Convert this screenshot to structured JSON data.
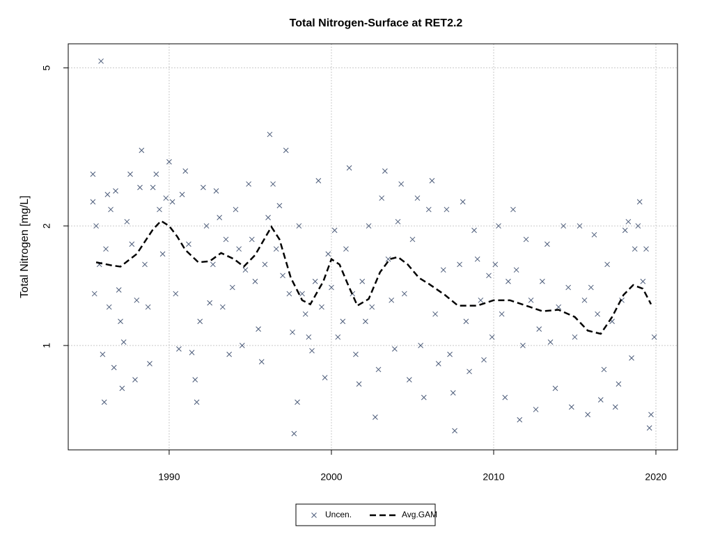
{
  "chart_data": {
    "type": "scatter",
    "title": "Total Nitrogen-Surface at RET2.2",
    "y_label": "Total Nitrogen [mg/L]",
    "xlim": [
      1983.78,
      2021.33
    ],
    "xticks": [
      1990,
      2000,
      2010,
      2020
    ],
    "ylim": [
      0.546,
      5.75
    ],
    "yticks": [
      1,
      2,
      5
    ],
    "ylog": true,
    "grid": true,
    "legend": "bottom",
    "series": [
      {
        "name": "Uncen.",
        "type": "scatter",
        "color": "#4a5a78",
        "x": [
          1985.3,
          1985.3,
          1985.4,
          1985.5,
          1985.7,
          1985.8,
          1985.9,
          1986.0,
          1986.1,
          1986.2,
          1986.3,
          1986.4,
          1986.6,
          1986.7,
          1986.9,
          1987.0,
          1987.1,
          1987.2,
          1987.4,
          1987.6,
          1987.7,
          1987.9,
          1988.0,
          1988.2,
          1988.3,
          1988.5,
          1988.7,
          1988.8,
          1989.0,
          1989.2,
          1989.4,
          1989.6,
          1989.8,
          1990.0,
          1990.2,
          1990.4,
          1990.6,
          1990.8,
          1991.0,
          1991.2,
          1991.4,
          1991.6,
          1991.7,
          1991.9,
          1992.1,
          1992.3,
          1992.5,
          1992.7,
          1992.9,
          1993.1,
          1993.3,
          1993.5,
          1993.7,
          1993.9,
          1994.1,
          1994.3,
          1994.5,
          1994.7,
          1994.9,
          1995.1,
          1995.3,
          1995.5,
          1995.7,
          1995.9,
          1996.1,
          1996.2,
          1996.4,
          1996.6,
          1996.8,
          1997.0,
          1997.2,
          1997.4,
          1997.6,
          1997.7,
          1997.9,
          1998.0,
          1998.2,
          1998.4,
          1998.6,
          1998.8,
          1999.0,
          1999.2,
          1999.4,
          1999.6,
          1999.8,
          2000.0,
          2000.2,
          2000.4,
          2000.7,
          2000.9,
          2001.1,
          2001.3,
          2001.5,
          2001.7,
          2001.9,
          2002.1,
          2002.3,
          2002.5,
          2002.7,
          2002.9,
          2003.1,
          2003.3,
          2003.5,
          2003.7,
          2003.9,
          2004.1,
          2004.3,
          2004.5,
          2004.8,
          2005.0,
          2005.3,
          2005.5,
          2005.7,
          2006.0,
          2006.2,
          2006.4,
          2006.6,
          2006.9,
          2007.1,
          2007.3,
          2007.5,
          2007.6,
          2007.9,
          2008.1,
          2008.3,
          2008.5,
          2008.8,
          2009.0,
          2009.2,
          2009.4,
          2009.7,
          2009.9,
          2010.1,
          2010.3,
          2010.5,
          2010.7,
          2010.9,
          2011.2,
          2011.4,
          2011.6,
          2011.8,
          2012.0,
          2012.3,
          2012.6,
          2012.8,
          2013.0,
          2013.3,
          2013.5,
          2013.8,
          2014.0,
          2014.3,
          2014.6,
          2014.8,
          2015.0,
          2015.3,
          2015.6,
          2015.8,
          2016.0,
          2016.2,
          2016.4,
          2016.6,
          2016.8,
          2017.0,
          2017.3,
          2017.5,
          2017.7,
          2017.9,
          2018.1,
          2018.3,
          2018.5,
          2018.7,
          2018.9,
          2019.0,
          2019.2,
          2019.4,
          2019.6,
          2019.7,
          2019.9
        ],
        "values": [
          2.7,
          2.3,
          1.35,
          2.0,
          1.6,
          5.2,
          0.95,
          0.72,
          1.75,
          2.4,
          1.25,
          2.2,
          0.88,
          2.45,
          1.38,
          1.15,
          0.78,
          1.02,
          2.05,
          2.7,
          1.8,
          0.82,
          1.3,
          2.5,
          3.1,
          1.6,
          1.25,
          0.9,
          2.5,
          2.7,
          2.2,
          1.7,
          2.35,
          2.9,
          2.3,
          1.35,
          0.98,
          2.4,
          2.75,
          1.8,
          0.96,
          0.82,
          0.72,
          1.15,
          2.5,
          2.0,
          1.28,
          1.6,
          2.45,
          2.1,
          1.25,
          1.85,
          0.95,
          1.4,
          2.2,
          1.75,
          1.0,
          1.55,
          2.55,
          1.85,
          1.45,
          1.1,
          0.91,
          1.6,
          2.1,
          3.4,
          2.55,
          1.75,
          2.25,
          1.5,
          3.1,
          1.35,
          1.08,
          0.6,
          0.72,
          2.0,
          1.35,
          1.2,
          1.05,
          0.97,
          1.45,
          2.6,
          1.25,
          0.83,
          1.7,
          1.4,
          1.95,
          1.05,
          1.15,
          1.75,
          2.8,
          1.35,
          0.95,
          0.8,
          1.45,
          1.15,
          2.0,
          1.25,
          0.66,
          0.87,
          2.35,
          2.75,
          1.65,
          1.3,
          0.98,
          2.05,
          2.55,
          1.35,
          0.82,
          1.85,
          2.35,
          1.0,
          0.74,
          2.2,
          2.6,
          1.2,
          0.9,
          1.55,
          2.2,
          0.95,
          0.76,
          0.61,
          1.6,
          2.3,
          1.15,
          0.86,
          1.95,
          1.65,
          1.3,
          0.92,
          1.5,
          1.05,
          1.6,
          2.0,
          1.2,
          0.74,
          1.45,
          2.2,
          1.55,
          0.65,
          1.0,
          1.85,
          1.3,
          0.69,
          1.1,
          1.45,
          1.8,
          1.02,
          0.78,
          1.25,
          2.0,
          1.4,
          0.7,
          1.05,
          2.0,
          1.3,
          0.67,
          1.4,
          1.9,
          1.2,
          0.73,
          0.87,
          1.6,
          1.15,
          0.7,
          0.8,
          1.3,
          1.95,
          2.05,
          0.93,
          1.75,
          2.0,
          2.3,
          1.45,
          1.75,
          0.62,
          0.67,
          1.05
        ]
      },
      {
        "name": "Avg.GAM",
        "type": "line",
        "color": "#000000",
        "x": [
          1985.5,
          1986.5,
          1987,
          1988,
          1989,
          1989.5,
          1990,
          1990.5,
          1991,
          1991.8,
          1992.5,
          1993.2,
          1994,
          1994.6,
          1995.3,
          1996.3,
          1996.8,
          1997.5,
          1998.2,
          1998.7,
          1999.5,
          2000,
          2000.5,
          2001,
          2001.6,
          2002.3,
          2003,
          2003.6,
          2004.1,
          2004.7,
          2005.4,
          2006,
          2007,
          2007.8,
          2009,
          2010,
          2011,
          2012,
          2013,
          2014,
          2015,
          2015.8,
          2016.6,
          2017.3,
          2018,
          2018.6,
          2019.2,
          2019.7
        ],
        "values": [
          1.62,
          1.59,
          1.58,
          1.7,
          1.96,
          2.06,
          2.0,
          1.88,
          1.74,
          1.62,
          1.63,
          1.71,
          1.65,
          1.58,
          1.69,
          1.99,
          1.85,
          1.48,
          1.3,
          1.27,
          1.45,
          1.65,
          1.6,
          1.43,
          1.26,
          1.31,
          1.53,
          1.65,
          1.67,
          1.6,
          1.48,
          1.43,
          1.34,
          1.26,
          1.26,
          1.3,
          1.3,
          1.26,
          1.22,
          1.23,
          1.18,
          1.09,
          1.07,
          1.18,
          1.34,
          1.42,
          1.39,
          1.27
        ]
      }
    ]
  }
}
